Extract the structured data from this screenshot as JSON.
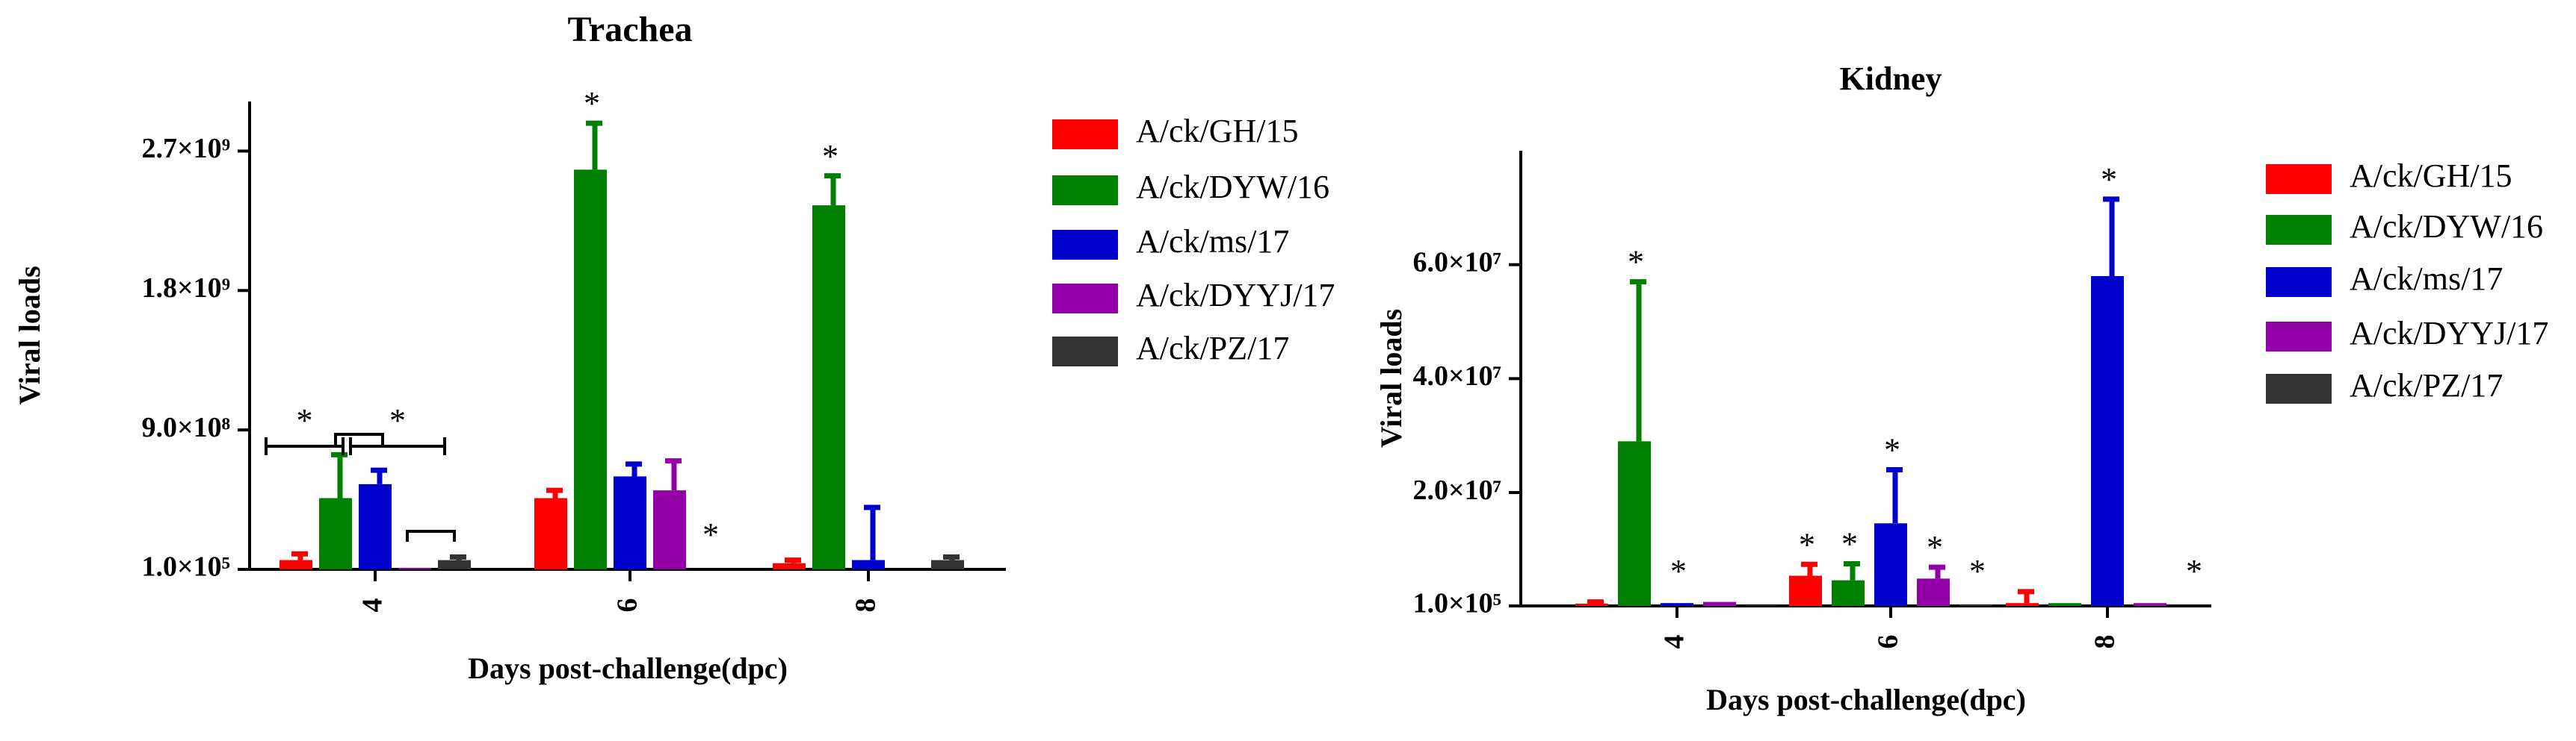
{
  "chart_data": [
    {
      "type": "bar",
      "title": "Trachea",
      "xlabel": "Days post-challenge(dpc)",
      "ylabel": "Viral loads",
      "categories": [
        "4",
        "6",
        "8"
      ],
      "ylim": [
        100000,
        3020000000
      ],
      "yticks": [
        {
          "value": 100000,
          "label": "1.0×10⁵"
        },
        {
          "value": 900000000,
          "label": "9.0×10⁸"
        },
        {
          "value": 1800000000,
          "label": "1.8×10⁹"
        },
        {
          "value": 2700000000,
          "label": "2.7×10⁹"
        }
      ],
      "annotations": [
        "*",
        "*"
      ],
      "series": [
        {
          "name": "A/ck/GH/15",
          "color": "#ff0000",
          "values": [
            60000000,
            460000000,
            40000000
          ],
          "errors": [
            40000000,
            50000000,
            20000000
          ],
          "significance": [
            null,
            null,
            null
          ]
        },
        {
          "name": "A/ck/DYW/16",
          "color": "#008000",
          "values": [
            460000000,
            2580000000,
            2350000000
          ],
          "errors": [
            280000000,
            300000000,
            190000000
          ],
          "significance": [
            null,
            "*",
            "*"
          ]
        },
        {
          "name": "A/ck/ms/17",
          "color": "#0000cc",
          "values": [
            550000000,
            600000000,
            60000000
          ],
          "errors": [
            90000000,
            80000000,
            340000000
          ],
          "significance": [
            null,
            null,
            null
          ]
        },
        {
          "name": "A/ck/DYYJ/17",
          "color": "#9400a8",
          "values": [
            10000000,
            510000000,
            0
          ],
          "errors": [
            0,
            190000000,
            0
          ],
          "significance": [
            null,
            null,
            null
          ]
        },
        {
          "name": "A/ck/PZ/17",
          "color": "#333333",
          "values": [
            60000000,
            0,
            60000000
          ],
          "errors": [
            20000000,
            0,
            20000000
          ],
          "significance": [
            null,
            "*",
            null
          ]
        }
      ]
    },
    {
      "type": "bar",
      "title": "Kidney",
      "xlabel": "Days post-challenge(dpc)",
      "ylabel": "Viral loads",
      "categories": [
        "4",
        "6",
        "8"
      ],
      "ylim": [
        100000,
        80000000
      ],
      "yticks": [
        {
          "value": 100000,
          "label": "1.0×10⁵"
        },
        {
          "value": 20000000,
          "label": "2.0×10⁷"
        },
        {
          "value": 40000000,
          "label": "4.0×10⁷"
        },
        {
          "value": 60000000,
          "label": "6.0×10⁷"
        }
      ],
      "series": [
        {
          "name": "A/ck/GH/15",
          "color": "#ff0000",
          "values": [
            500000,
            5400000,
            600000
          ],
          "errors": [
            300000,
            2000000,
            2000000
          ],
          "significance": [
            null,
            "*",
            null
          ]
        },
        {
          "name": "A/ck/DYW/16",
          "color": "#008000",
          "values": [
            29000000,
            4600000,
            600000
          ],
          "errors": [
            28000000,
            2900000,
            0
          ],
          "significance": [
            "*",
            "*",
            null
          ]
        },
        {
          "name": "A/ck/ms/17",
          "color": "#0000cc",
          "values": [
            600000,
            14600000,
            58000000
          ],
          "errors": [
            0,
            9400000,
            13500000
          ],
          "significance": [
            "*",
            "*",
            "*"
          ]
        },
        {
          "name": "A/ck/DYYJ/17",
          "color": "#9400a8",
          "values": [
            800000,
            4900000,
            600000
          ],
          "errors": [
            0,
            2000000,
            0
          ],
          "significance": [
            null,
            "*",
            null
          ]
        },
        {
          "name": "A/ck/PZ/17",
          "color": "#333333",
          "values": [
            200000,
            300000,
            100000
          ],
          "errors": [
            0,
            0,
            0
          ],
          "significance": [
            null,
            "*",
            "*"
          ]
        }
      ]
    }
  ]
}
